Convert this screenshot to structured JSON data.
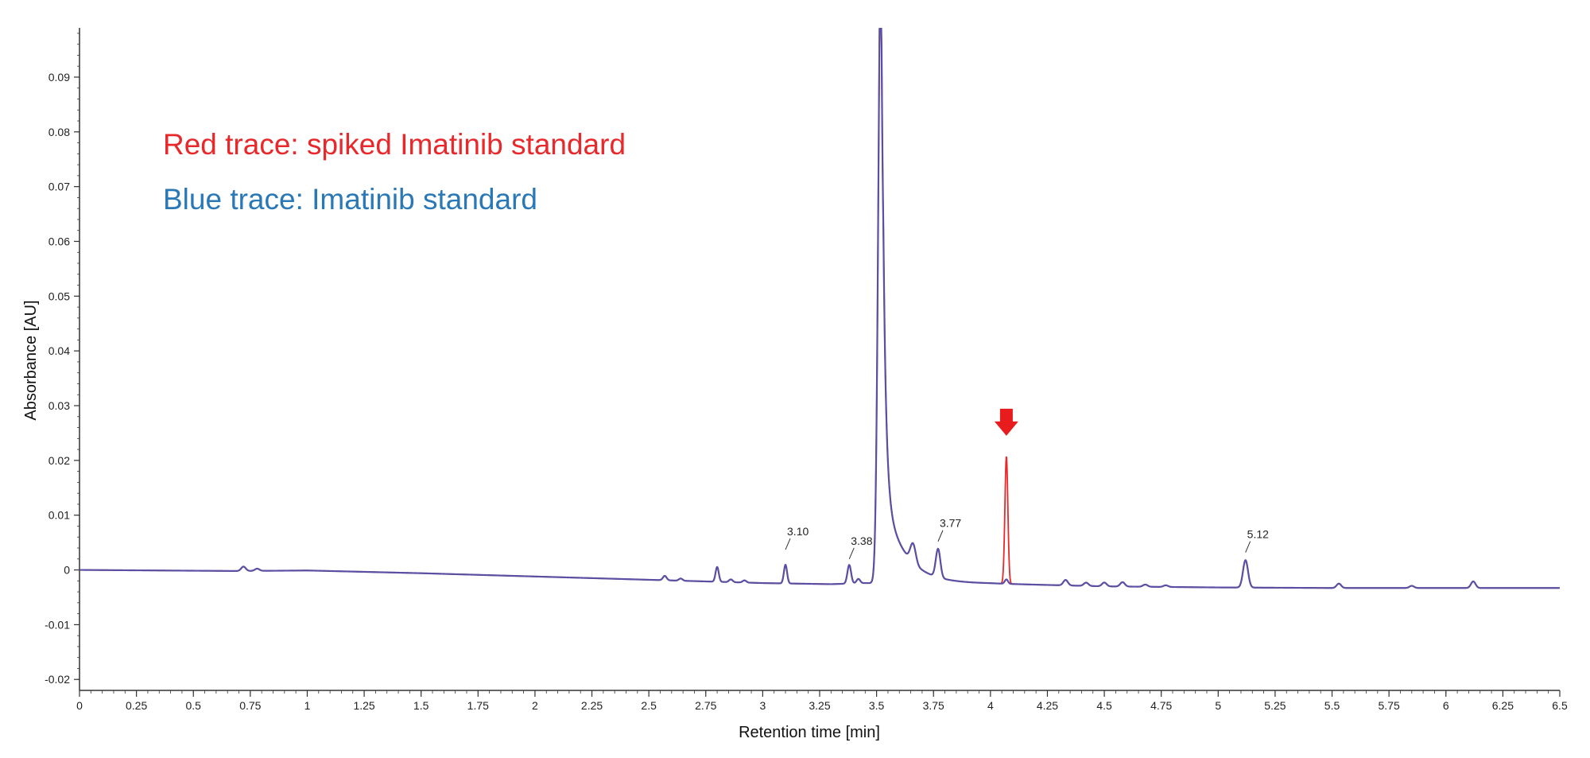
{
  "chart_data": {
    "type": "line",
    "title": "",
    "xlabel": "Retention time [min]",
    "ylabel": "Absorbance [AU]",
    "xlim": [
      0,
      6.5
    ],
    "ylim": [
      -0.022,
      0.099
    ],
    "x_ticks": [
      "0",
      "0.25",
      "0.5",
      "0.75",
      "1",
      "1.25",
      "1.5",
      "1.75",
      "2",
      "2.25",
      "2.5",
      "2.75",
      "3",
      "3.25",
      "3.5",
      "3.75",
      "4",
      "4.25",
      "4.5",
      "4.75",
      "5",
      "5.25",
      "5.5",
      "5.75",
      "6",
      "6.25",
      "6.5"
    ],
    "y_ticks": [
      "0.09",
      "0.08",
      "0.07",
      "0.06",
      "0.05",
      "0.04",
      "0.03",
      "0.02",
      "0.01",
      "0",
      "-0.01",
      "-0.02"
    ],
    "grid": false,
    "legend": {
      "red": "Red trace: spiked Imatinib standard",
      "blue": "Blue trace: Imatinib standard"
    },
    "colors": {
      "red": "#e8282a",
      "blue": "#2a78b5",
      "overlap": "#5a4fa3",
      "arrow": "#e81c1c",
      "axis": "#333333"
    },
    "peak_labels": [
      {
        "text": "3.10",
        "x": 3.1,
        "y": 0.0025
      },
      {
        "text": "3.38",
        "x": 3.38,
        "y": 0.0008
      },
      {
        "text": "3.77",
        "x": 3.77,
        "y": 0.004
      },
      {
        "text": "5.12",
        "x": 5.12,
        "y": 0.002
      }
    ],
    "arrow_at": {
      "x": 4.07,
      "y": 0.0245
    },
    "series": [
      {
        "color": "blue",
        "baseline": [
          [
            0,
            0
          ],
          [
            0.7,
            -0.0002
          ],
          [
            1.0,
            -0.0001
          ],
          [
            1.5,
            -0.0006
          ],
          [
            2.0,
            -0.0012
          ],
          [
            2.5,
            -0.0018
          ],
          [
            3.0,
            -0.0024
          ],
          [
            3.3,
            -0.0026
          ],
          [
            3.45,
            -0.0024
          ],
          [
            4.0,
            -0.0025
          ],
          [
            4.5,
            -0.003
          ],
          [
            5.0,
            -0.0032
          ],
          [
            5.5,
            -0.0033
          ],
          [
            6.0,
            -0.0033
          ],
          [
            6.5,
            -0.0033
          ]
        ],
        "peaks": [
          {
            "rt": 0.72,
            "h": 0.0008,
            "w": 0.01
          },
          {
            "rt": 0.78,
            "h": 0.0004,
            "w": 0.01
          },
          {
            "rt": 2.57,
            "h": 0.0008,
            "w": 0.008
          },
          {
            "rt": 2.64,
            "h": 0.0004,
            "w": 0.008
          },
          {
            "rt": 2.8,
            "h": 0.0027,
            "w": 0.007
          },
          {
            "rt": 2.86,
            "h": 0.0005,
            "w": 0.008
          },
          {
            "rt": 2.92,
            "h": 0.0004,
            "w": 0.008
          },
          {
            "rt": 3.1,
            "h": 0.0034,
            "w": 0.007
          },
          {
            "rt": 3.38,
            "h": 0.0034,
            "w": 0.008
          },
          {
            "rt": 3.42,
            "h": 0.0008,
            "w": 0.008
          },
          {
            "rt": 3.66,
            "h": 0.0035,
            "w": 0.012
          },
          {
            "rt": 3.77,
            "h": 0.0052,
            "w": 0.01
          },
          {
            "rt": 4.07,
            "h": 0.0008,
            "w": 0.007
          },
          {
            "rt": 4.33,
            "h": 0.001,
            "w": 0.01
          },
          {
            "rt": 4.42,
            "h": 0.0006,
            "w": 0.01
          },
          {
            "rt": 4.5,
            "h": 0.0007,
            "w": 0.01
          },
          {
            "rt": 4.58,
            "h": 0.0008,
            "w": 0.01
          },
          {
            "rt": 4.68,
            "h": 0.0004,
            "w": 0.01
          },
          {
            "rt": 4.77,
            "h": 0.0003,
            "w": 0.01
          },
          {
            "rt": 5.12,
            "h": 0.005,
            "w": 0.011
          },
          {
            "rt": 5.53,
            "h": 0.0008,
            "w": 0.01
          },
          {
            "rt": 5.85,
            "h": 0.0004,
            "w": 0.01
          },
          {
            "rt": 6.12,
            "h": 0.0012,
            "w": 0.01
          }
        ],
        "main_peak": {
          "rt": 3.52,
          "h": 0.12,
          "wl": 0.012,
          "tail": 0.09
        }
      },
      {
        "color": "red",
        "peaks": [
          {
            "rt": 4.07,
            "h": 0.0225,
            "w": 0.0065
          }
        ]
      }
    ]
  }
}
